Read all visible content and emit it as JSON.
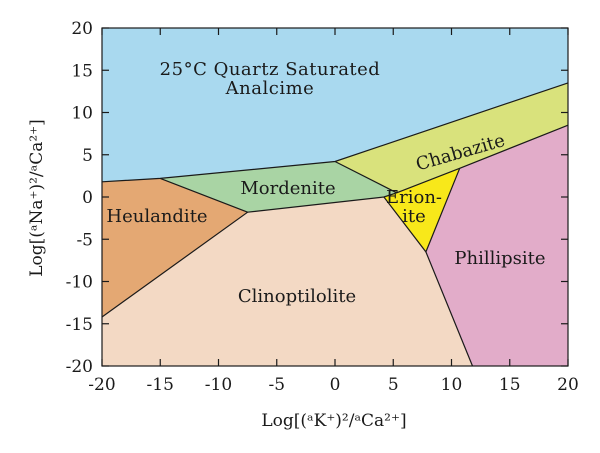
{
  "chart_data": {
    "type": "phase-diagram",
    "title_lines": [
      "25°C Quartz Saturated",
      "Analcime"
    ],
    "xlabel": "Log[(ᵃK⁺)²/ᵃCa²⁺]",
    "ylabel": "Log[(ᵃNa⁺)²/ᵃCa²⁺]",
    "xlim": [
      -20,
      20
    ],
    "ylim": [
      -20,
      20
    ],
    "xticks": [
      -20,
      -15,
      -10,
      -5,
      0,
      5,
      10,
      15,
      20
    ],
    "yticks": [
      -20,
      -15,
      -10,
      -5,
      0,
      5,
      10,
      15,
      20
    ],
    "xtick_labels": [
      "-20",
      "-15",
      "-10",
      "-5",
      "0",
      "5",
      "10",
      "15",
      "20"
    ],
    "ytick_labels": [
      "-20",
      "-15",
      "-10",
      "-5",
      "0",
      "5",
      "10",
      "15",
      "20"
    ],
    "fields": [
      {
        "name": "Analcime",
        "color": "#a9d9ef",
        "polygon": [
          [
            -20,
            20
          ],
          [
            20,
            20
          ],
          [
            20,
            13.5
          ],
          [
            0,
            4.2
          ],
          [
            -15,
            2.2
          ],
          [
            -20,
            1.8
          ]
        ]
      },
      {
        "name": "Chabazite",
        "color": "#d9e27c",
        "polygon": [
          [
            0,
            4.2
          ],
          [
            20,
            13.5
          ],
          [
            20,
            8.5
          ],
          [
            10.7,
            3.4
          ],
          [
            5.3,
            0.5
          ]
        ]
      },
      {
        "name": "Mordenite",
        "color": "#a9d4a4",
        "polygon": [
          [
            -15,
            2.2
          ],
          [
            0,
            4.2
          ],
          [
            5.3,
            0.5
          ],
          [
            4.2,
            0
          ],
          [
            -7.5,
            -1.8
          ]
        ]
      },
      {
        "name": "Heulandite",
        "color": "#e4a873",
        "polygon": [
          [
            -20,
            1.8
          ],
          [
            -15,
            2.2
          ],
          [
            -7.5,
            -1.8
          ],
          [
            -20,
            -14.2
          ]
        ]
      },
      {
        "name": "Clinoptilolite",
        "color": "#f3d9c4",
        "polygon": [
          [
            -20,
            -14.2
          ],
          [
            -7.5,
            -1.8
          ],
          [
            4.2,
            0
          ],
          [
            7.8,
            -6.5
          ],
          [
            11.8,
            -20
          ],
          [
            -20,
            -20
          ]
        ]
      },
      {
        "name": "Erionite",
        "label_lines": [
          "Erion-",
          "ite"
        ],
        "color": "#f8e81a",
        "polygon": [
          [
            4.2,
            0
          ],
          [
            5.3,
            0.5
          ],
          [
            10.7,
            3.4
          ],
          [
            7.8,
            -6.5
          ]
        ]
      },
      {
        "name": "Phillipsite",
        "color": "#e2acc9",
        "polygon": [
          [
            10.7,
            3.4
          ],
          [
            20,
            8.5
          ],
          [
            20,
            -20
          ],
          [
            11.8,
            -20
          ],
          [
            7.8,
            -6.5
          ]
        ]
      }
    ],
    "boundaries": [
      [
        [
          -20,
          1.8
        ],
        [
          -15,
          2.2
        ],
        [
          0,
          4.2
        ],
        [
          20,
          13.5
        ]
      ],
      [
        [
          0,
          4.2
        ],
        [
          5.3,
          0.5
        ]
      ],
      [
        [
          5.3,
          0.5
        ],
        [
          10.7,
          3.4
        ],
        [
          20,
          8.5
        ]
      ],
      [
        [
          -15,
          2.2
        ],
        [
          -7.5,
          -1.8
        ],
        [
          -20,
          -14.2
        ]
      ],
      [
        [
          -7.5,
          -1.8
        ],
        [
          4.2,
          0
        ],
        [
          5.3,
          0.5
        ]
      ],
      [
        [
          4.2,
          0
        ],
        [
          7.8,
          -6.5
        ],
        [
          10.7,
          3.4
        ]
      ],
      [
        [
          7.8,
          -6.5
        ],
        [
          11.8,
          -20
        ]
      ]
    ]
  }
}
